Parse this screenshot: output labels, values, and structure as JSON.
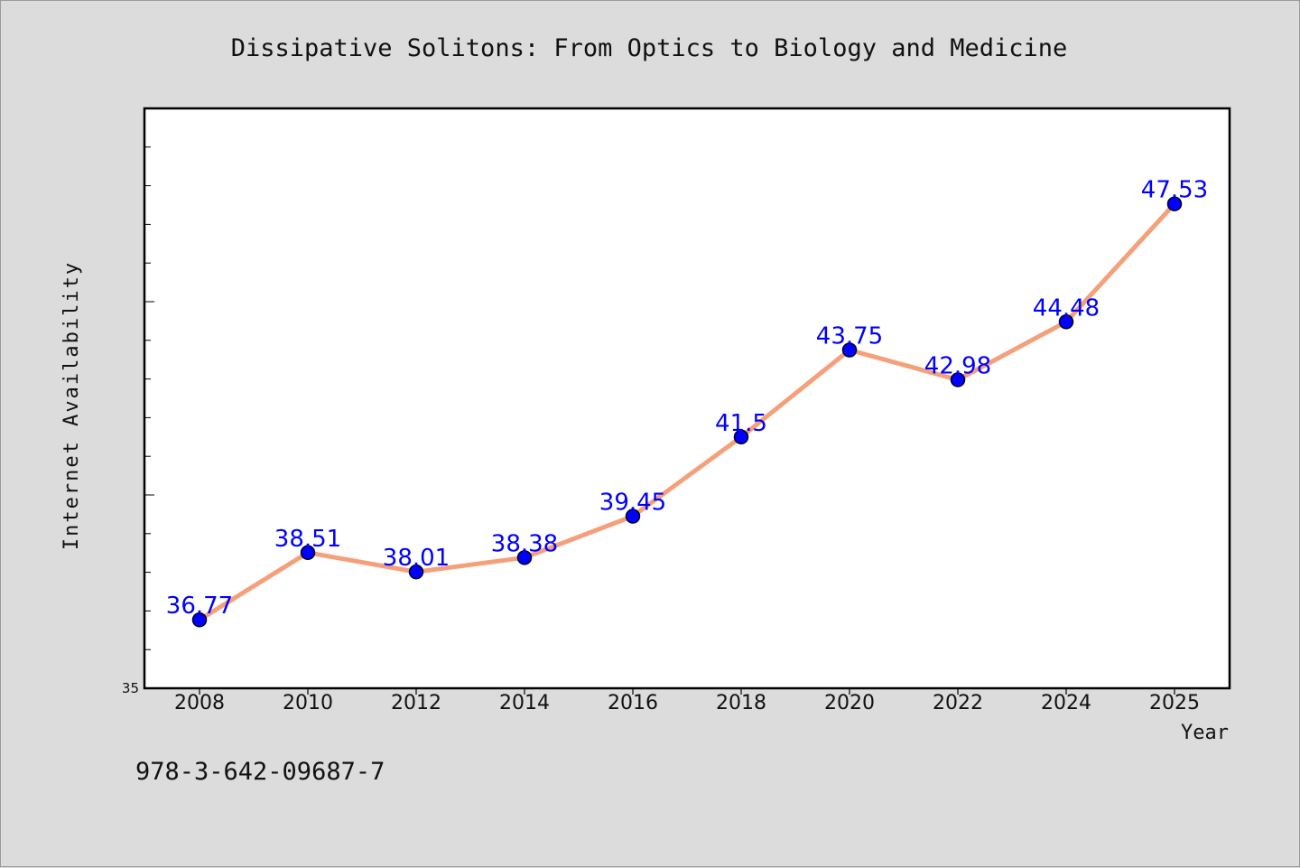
{
  "chart_data": {
    "type": "line",
    "title": "Dissipative Solitons: From Optics to Biology and Medicine",
    "xlabel": "Year",
    "ylabel": "Internet Availability",
    "categories": [
      "2008",
      "2010",
      "2012",
      "2014",
      "2016",
      "2018",
      "2020",
      "2022",
      "2024",
      "2025"
    ],
    "series": [
      {
        "values": [
          36.77,
          38.51,
          38.01,
          38.38,
          39.45,
          41.5,
          43.75,
          42.98,
          44.48,
          47.53
        ],
        "labels": [
          "36.77",
          "38.51",
          "38.01",
          "38.38",
          "39.45",
          "41.5",
          "43.75",
          "42.98",
          "44.48",
          "47.53"
        ],
        "line_color": "#f4a07a",
        "marker_color": "#0000ff"
      }
    ],
    "ylim": [
      35,
      50
    ],
    "y_tick_labels": [
      "35"
    ],
    "grid": false,
    "legend": false
  },
  "footnote": "978-3-642-09687-7",
  "colors": {
    "background": "#dcdcdc",
    "plot_background": "#ffffff",
    "line": "#f4a07a",
    "marker": "#0000ff",
    "data_label": "#0000ff"
  }
}
